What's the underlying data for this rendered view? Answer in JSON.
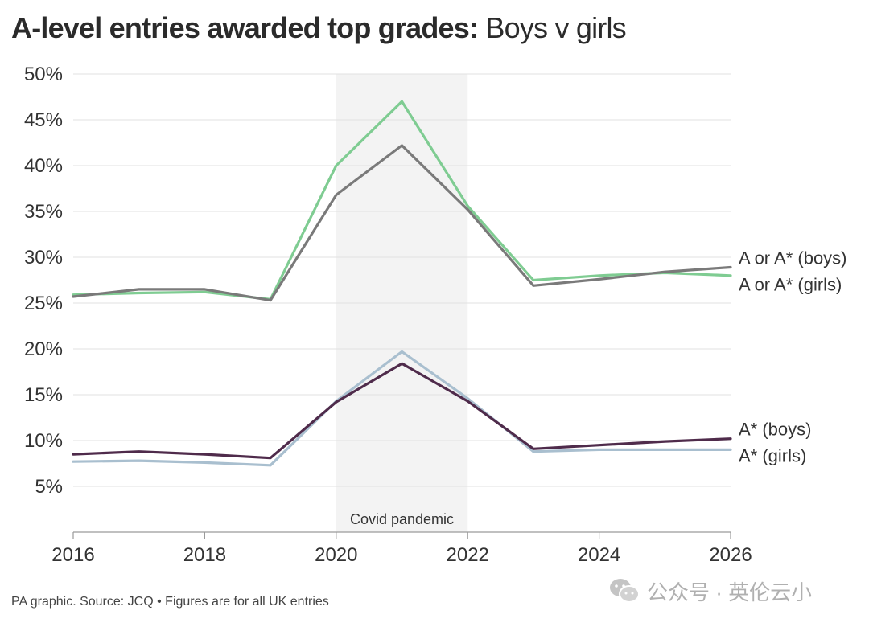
{
  "title": {
    "bold": "A-level entries awarded top grades",
    "sep": ":",
    "light": " Boys v girls"
  },
  "source": "PA graphic. Source: JCQ • Figures are for all UK entries",
  "watermark": {
    "text": "公众号 · 英伦云小",
    "icon": "wechat-icon"
  },
  "chart_data": {
    "type": "line",
    "title": "A-level entries awarded top grades: Boys v girls",
    "x": [
      2016,
      2017,
      2018,
      2019,
      2020,
      2021,
      2022,
      2023,
      2024,
      2025,
      2026
    ],
    "xlim": [
      2016,
      2026
    ],
    "ylim": [
      0,
      50
    ],
    "grid": true,
    "x_ticks": [
      2016,
      2018,
      2020,
      2022,
      2024,
      2026
    ],
    "x_tick_labels": [
      "2016",
      "2018",
      "2020",
      "2022",
      "2024",
      "2026"
    ],
    "y_ticks": [
      5,
      10,
      15,
      20,
      25,
      30,
      35,
      40,
      45,
      50
    ],
    "y_tick_labels": [
      "5%",
      "10%",
      "15%",
      "20%",
      "25%",
      "30%",
      "35%",
      "40%",
      "45%",
      "50%"
    ],
    "series": [
      {
        "name": "A or A* (girls)",
        "color": "#7fcc92",
        "values": [
          25.9,
          26.1,
          26.2,
          25.4,
          40.0,
          47.0,
          35.6,
          27.5,
          28.0,
          28.3,
          28.0
        ]
      },
      {
        "name": "A or A* (boys)",
        "color": "#7a7a7a",
        "values": [
          25.7,
          26.5,
          26.5,
          25.3,
          36.8,
          42.2,
          35.2,
          26.9,
          27.6,
          28.4,
          28.9
        ]
      },
      {
        "name": "A* (girls)",
        "color": "#a9bfcf",
        "values": [
          7.7,
          7.8,
          7.6,
          7.3,
          14.3,
          19.7,
          14.6,
          8.8,
          9.0,
          9.0,
          9.0
        ]
      },
      {
        "name": "A* (boys)",
        "color": "#4f2b4b",
        "values": [
          8.5,
          8.8,
          8.5,
          8.1,
          14.2,
          18.4,
          14.3,
          9.1,
          9.5,
          9.9,
          10.2
        ]
      }
    ],
    "annotations": [
      {
        "type": "band",
        "label": "Covid pandemic",
        "x_start": 2020,
        "x_end": 2022
      }
    ]
  }
}
